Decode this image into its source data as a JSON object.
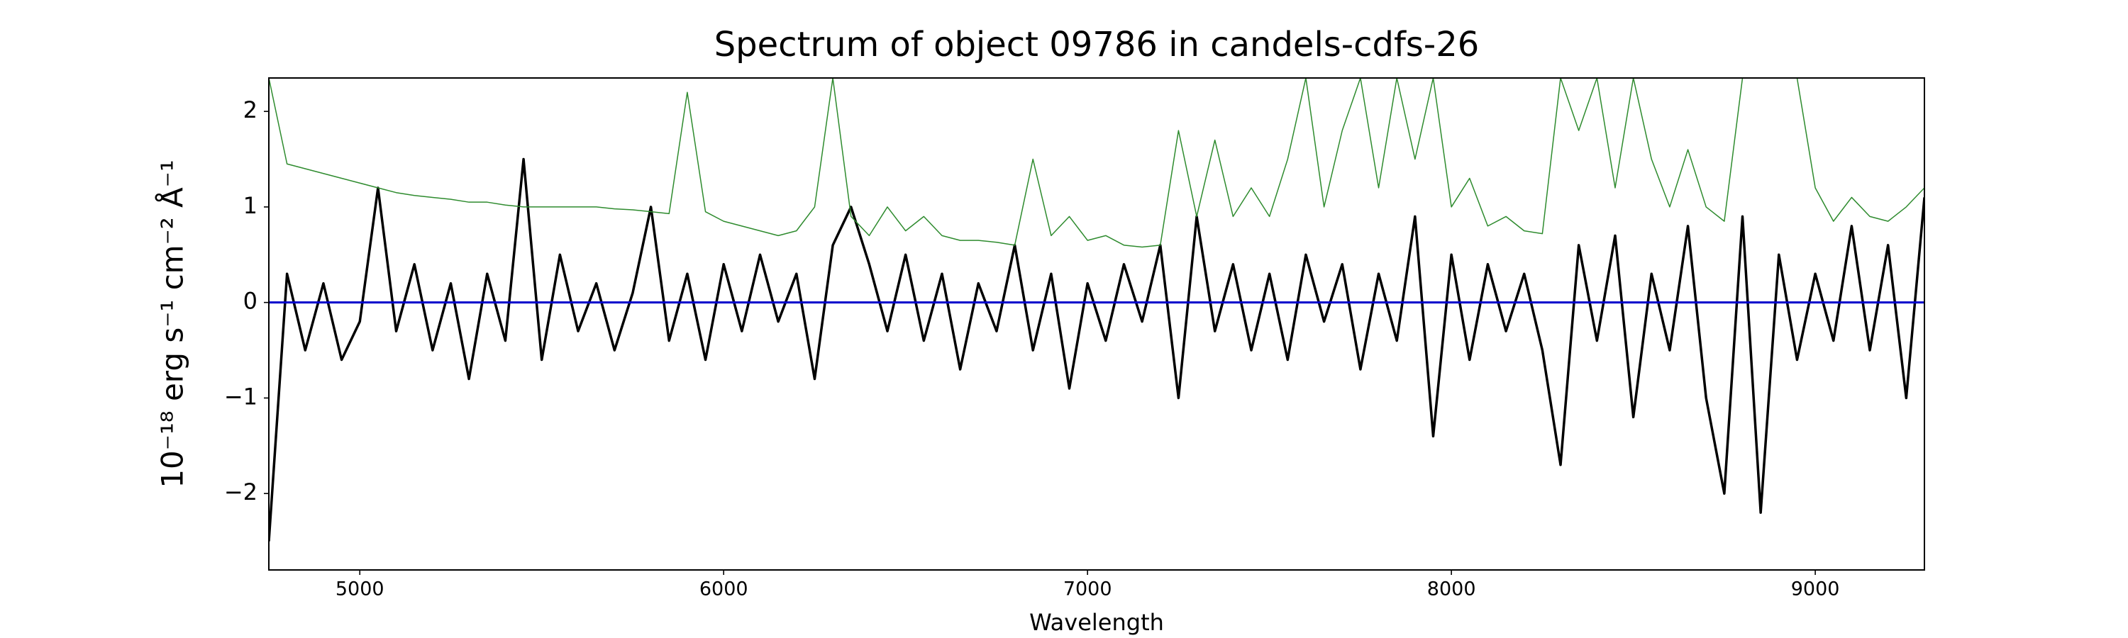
{
  "chart_data": {
    "type": "line",
    "title": "Spectrum of object 09786 in candels-cdfs-26",
    "xlabel": "Wavelength",
    "ylabel": "10⁻¹⁸ erg s⁻¹ cm⁻² Å⁻¹",
    "xlim": [
      4750,
      9300
    ],
    "ylim": [
      -2.8,
      2.35
    ],
    "xticks": [
      5000,
      6000,
      7000,
      8000,
      9000
    ],
    "yticks": [
      {
        "value": -2,
        "label": "−2"
      },
      {
        "value": -1,
        "label": "−1"
      },
      0,
      1,
      2
    ],
    "grid": false,
    "x": [
      4750,
      4800,
      4850,
      4900,
      4950,
      5000,
      5050,
      5100,
      5150,
      5200,
      5250,
      5300,
      5350,
      5400,
      5450,
      5500,
      5550,
      5600,
      5650,
      5700,
      5750,
      5800,
      5850,
      5900,
      5950,
      6000,
      6050,
      6100,
      6150,
      6200,
      6250,
      6300,
      6350,
      6400,
      6450,
      6500,
      6550,
      6600,
      6650,
      6700,
      6750,
      6800,
      6850,
      6900,
      6950,
      7000,
      7050,
      7100,
      7150,
      7200,
      7250,
      7300,
      7350,
      7400,
      7450,
      7500,
      7550,
      7600,
      7650,
      7700,
      7750,
      7800,
      7850,
      7900,
      7950,
      8000,
      8050,
      8100,
      8150,
      8200,
      8250,
      8300,
      8350,
      8400,
      8450,
      8500,
      8550,
      8600,
      8650,
      8700,
      8750,
      8800,
      8850,
      8900,
      8950,
      9000,
      9050,
      9100,
      9150,
      9200,
      9250,
      9300
    ],
    "series": [
      {
        "color": "#000000",
        "width": 3.5,
        "values": [
          -2.5,
          0.3,
          -0.5,
          0.2,
          -0.6,
          -0.2,
          1.2,
          -0.3,
          0.4,
          -0.5,
          0.2,
          -0.8,
          0.3,
          -0.4,
          1.5,
          -0.6,
          0.5,
          -0.3,
          0.2,
          -0.5,
          0.1,
          1.0,
          -0.4,
          0.3,
          -0.6,
          0.4,
          -0.3,
          0.5,
          -0.2,
          0.3,
          -0.8,
          0.6,
          1.0,
          0.4,
          -0.3,
          0.5,
          -0.4,
          0.3,
          -0.7,
          0.2,
          -0.3,
          0.6,
          -0.5,
          0.3,
          -0.9,
          0.2,
          -0.4,
          0.4,
          -0.2,
          0.6,
          -1.0,
          0.9,
          -0.3,
          0.4,
          -0.5,
          0.3,
          -0.6,
          0.5,
          -0.2,
          0.4,
          -0.7,
          0.3,
          -0.4,
          0.9,
          -1.4,
          0.5,
          -0.6,
          0.4,
          -0.3,
          0.3,
          -0.5,
          -1.7,
          0.6,
          -0.4,
          0.7,
          -1.2,
          0.3,
          -0.5,
          0.8,
          -1.0,
          -2.0,
          0.9,
          -2.2,
          0.5,
          -0.6,
          0.3,
          -0.4,
          0.8,
          -0.5,
          0.6,
          -1.0,
          1.1
        ]
      },
      {
        "color": "#2e8b2e",
        "width": 1.5,
        "values": [
          2.35,
          1.45,
          1.4,
          1.35,
          1.3,
          1.25,
          1.2,
          1.15,
          1.12,
          1.1,
          1.08,
          1.05,
          1.05,
          1.02,
          1.0,
          1.0,
          1.0,
          1.0,
          1.0,
          0.98,
          0.97,
          0.95,
          0.93,
          2.2,
          0.95,
          0.85,
          0.8,
          0.75,
          0.7,
          0.75,
          1.0,
          2.35,
          0.9,
          0.7,
          1.0,
          0.75,
          0.9,
          0.7,
          0.65,
          0.65,
          0.63,
          0.6,
          1.5,
          0.7,
          0.9,
          0.65,
          0.7,
          0.6,
          0.58,
          0.6,
          1.8,
          0.9,
          1.7,
          0.9,
          1.2,
          0.9,
          1.5,
          2.35,
          1.0,
          1.8,
          2.35,
          1.2,
          2.35,
          1.5,
          2.35,
          1.0,
          1.3,
          0.8,
          0.9,
          0.75,
          0.72,
          2.35,
          1.8,
          2.35,
          1.2,
          2.35,
          1.5,
          1.0,
          1.6,
          1.0,
          0.85,
          2.35,
          2.35,
          2.35,
          2.35,
          1.2,
          0.85,
          1.1,
          0.9,
          0.85,
          1.0,
          1.2
        ]
      },
      {
        "color": "#0000cc",
        "width": 3,
        "x": [
          4750,
          9300
        ],
        "values": [
          0,
          0
        ]
      }
    ]
  }
}
